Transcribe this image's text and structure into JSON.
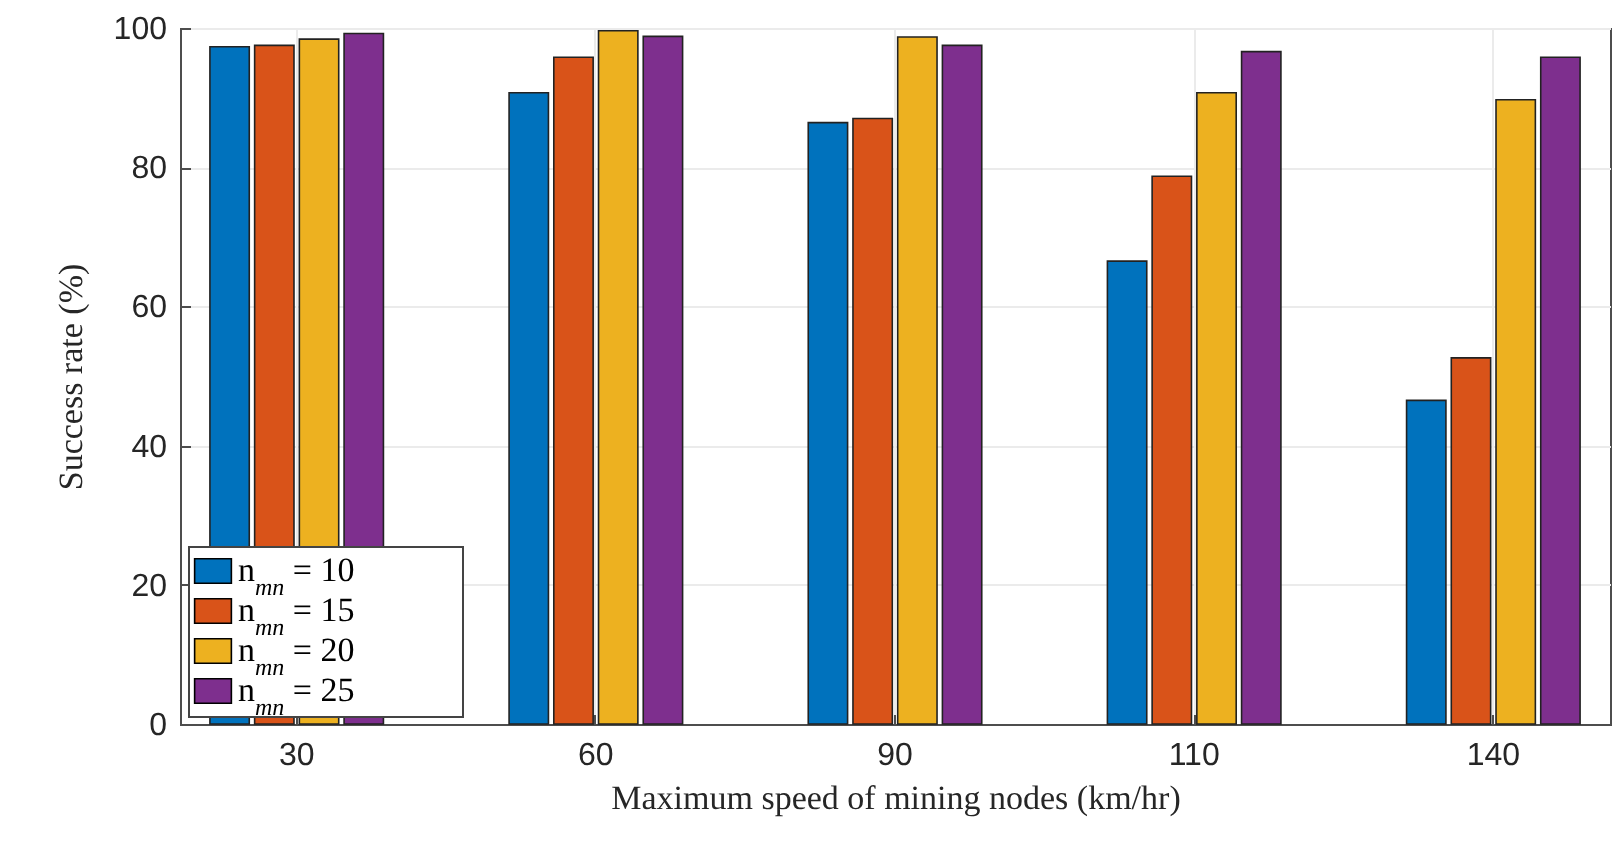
{
  "chart_data": {
    "type": "bar",
    "xlabel": "Maximum speed of mining nodes (km/hr)",
    "ylabel": "Success rate (%)",
    "categories": [
      "30",
      "60",
      "90",
      "110",
      "140"
    ],
    "series": [
      {
        "name": "n$_{mn}$ = 10",
        "color": "#0072bd",
        "values": [
          97.3,
          90.7,
          86.4,
          66.5,
          46.5
        ]
      },
      {
        "name": "n$_{mn}$ = 15",
        "color": "#d95319",
        "values": [
          97.5,
          95.8,
          87.0,
          78.7,
          52.6
        ]
      },
      {
        "name": "n$_{mn}$ = 20",
        "color": "#edb120",
        "values": [
          98.4,
          99.6,
          98.7,
          90.7,
          89.7
        ]
      },
      {
        "name": "n$_{mn}$ = 25",
        "color": "#7e2f8e",
        "values": [
          99.2,
          98.8,
          97.5,
          96.6,
          95.8
        ]
      }
    ],
    "ylim": [
      0,
      100
    ],
    "yticks": [
      0,
      20,
      40,
      60,
      80,
      100
    ],
    "grid": true,
    "legend": "bottom left"
  }
}
